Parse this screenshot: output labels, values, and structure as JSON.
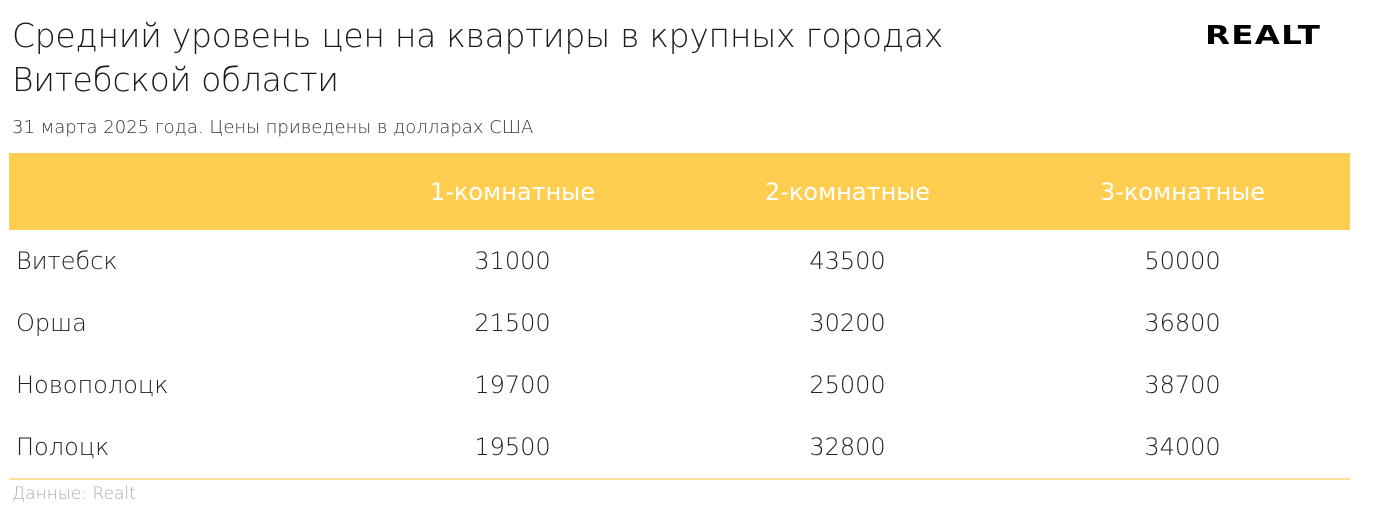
{
  "title": "Средний уровень цен на квартиры в крупных городах Витебской области",
  "subtitle": "31 марта 2025 года. Цены приведены в долларах США",
  "logo": "Realt",
  "table": {
    "headers": [
      "",
      "1-комнатные",
      "2-комнатные",
      "3-комнатные"
    ],
    "rows": [
      {
        "city": "Витебск",
        "values": [
          "31000",
          "43500",
          "50000"
        ]
      },
      {
        "city": "Орша",
        "values": [
          "21500",
          "30200",
          "36800"
        ]
      },
      {
        "city": "Новополоцк",
        "values": [
          "19700",
          "25000",
          "38700"
        ]
      },
      {
        "city": "Полоцк",
        "values": [
          "19500",
          "32800",
          "34000"
        ]
      }
    ]
  },
  "footer": "Данные: Realt",
  "colors": {
    "header_bg": "#FFCD50",
    "header_text": "#FFFFFF",
    "bottom_rule": "#FBE29A"
  }
}
